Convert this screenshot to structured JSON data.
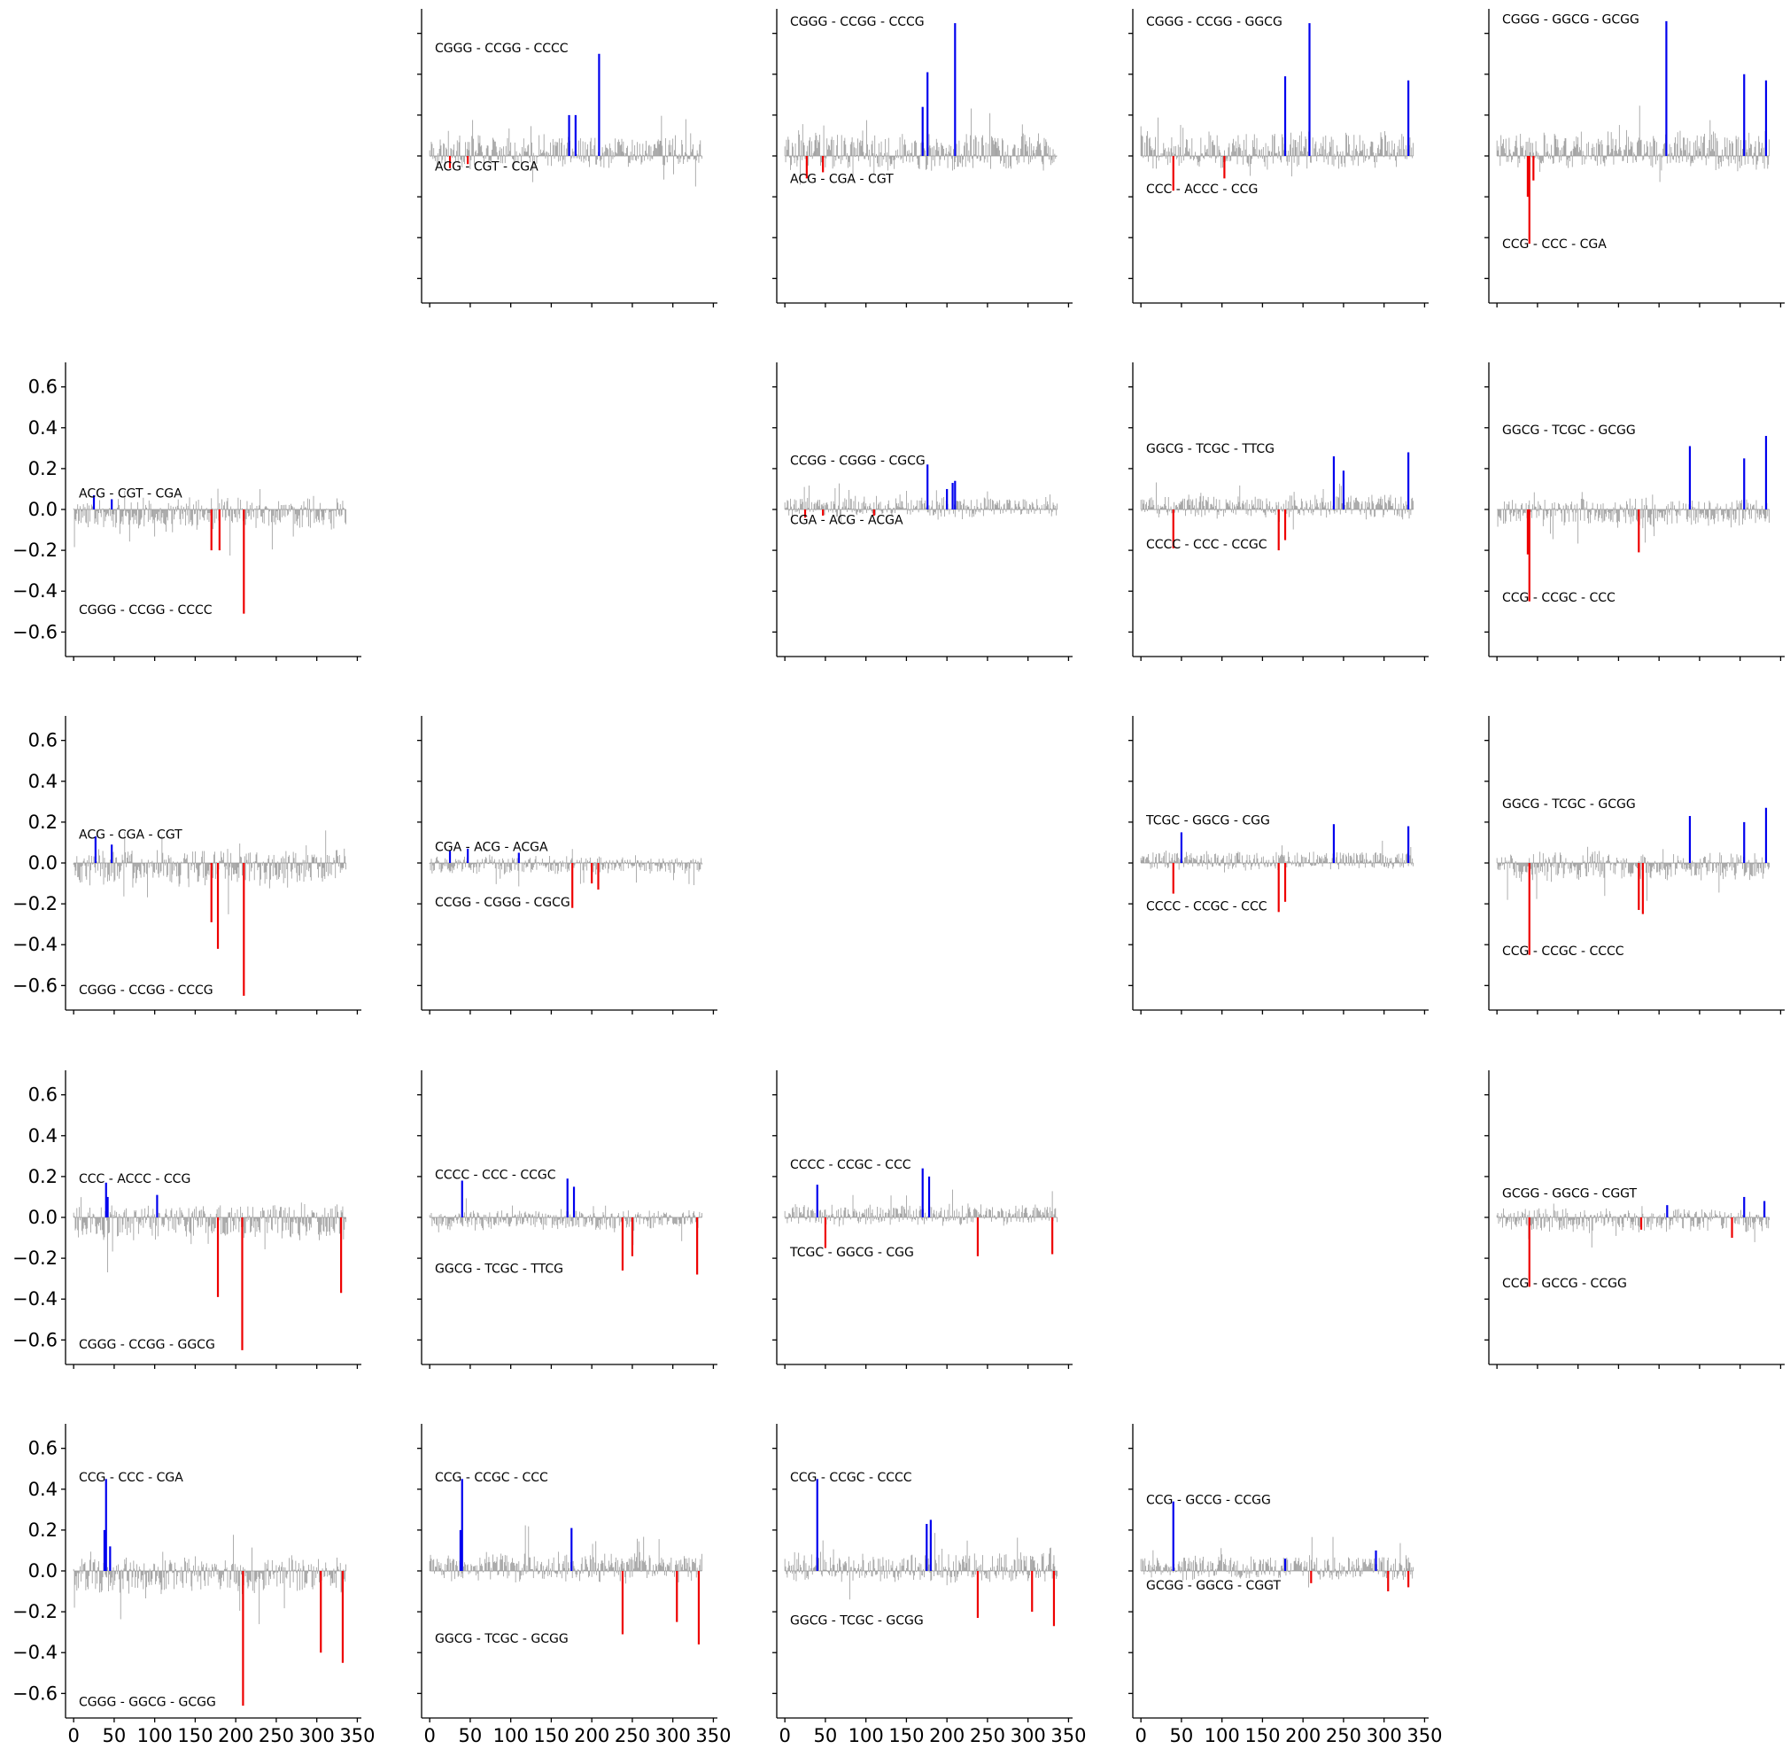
{
  "colors": {
    "positive": "#0000ee",
    "negative": "#ee0000",
    "background": "#999999",
    "axis": "#000000"
  },
  "chart_data": {
    "type": "bar",
    "layout": "5x5 grid of small multiples, diagonal and lower-right corner empty",
    "xlim": [
      -10,
      355
    ],
    "ylim": [
      -0.72,
      0.72
    ],
    "xticks": [
      0,
      50,
      100,
      150,
      200,
      250,
      300,
      350
    ],
    "yticks": [
      -0.6,
      -0.4,
      -0.2,
      0.0,
      0.2,
      0.4,
      0.6
    ],
    "ytick_labels": [
      "−0.6",
      "−0.4",
      "−0.2",
      "0.0",
      "0.2",
      "0.4",
      "0.6"
    ],
    "panels": [
      {
        "row": 0,
        "col": 1,
        "top_label": "CGGG - CCGG - CCCC",
        "bottom_label": "ACG - CGT - CGA",
        "top_label_value": 0.53,
        "bottom_label_value": -0.05,
        "bars": [
          [
            172,
            0.2
          ],
          [
            180,
            0.2
          ],
          [
            209,
            0.5
          ],
          [
            25,
            -0.06
          ],
          [
            47,
            -0.04
          ]
        ]
      },
      {
        "row": 0,
        "col": 2,
        "top_label": "CGGG - CCGG - CCCG",
        "bottom_label": "ACG - CGA - CGT",
        "top_label_value": 0.66,
        "bottom_label_value": -0.11,
        "bars": [
          [
            170,
            0.24
          ],
          [
            176,
            0.41
          ],
          [
            210,
            0.65
          ],
          [
            27,
            -0.11
          ],
          [
            47,
            -0.08
          ]
        ]
      },
      {
        "row": 0,
        "col": 3,
        "top_label": "CGGG - CCGG - GGCG",
        "bottom_label": "CCC - ACCC - CCG",
        "top_label_value": 0.66,
        "bottom_label_value": -0.16,
        "bars": [
          [
            178,
            0.39
          ],
          [
            208,
            0.65
          ],
          [
            330,
            0.37
          ],
          [
            40,
            -0.17
          ],
          [
            103,
            -0.11
          ]
        ]
      },
      {
        "row": 0,
        "col": 4,
        "top_label": "CGGG - GGCG - GCGG",
        "bottom_label": "CCG - CCC - CGA",
        "top_label_value": 0.67,
        "bottom_label_value": -0.43,
        "bars": [
          [
            209,
            0.66
          ],
          [
            305,
            0.4
          ],
          [
            332,
            0.37
          ],
          [
            38,
            -0.2
          ],
          [
            40,
            -0.43
          ],
          [
            45,
            -0.12
          ]
        ]
      },
      {
        "row": 1,
        "col": 0,
        "top_label": "ACG - CGT - CGA",
        "bottom_label": "CGGG - CCGG - CCCC",
        "top_label_value": 0.08,
        "bottom_label_value": -0.49,
        "bars": [
          [
            25,
            0.07
          ],
          [
            47,
            0.05
          ],
          [
            170,
            -0.2
          ],
          [
            180,
            -0.2
          ],
          [
            210,
            -0.51
          ]
        ]
      },
      {
        "row": 1,
        "col": 2,
        "top_label": "CCGG - CGGG - CGCG",
        "bottom_label": "CGA - ACG - ACGA",
        "top_label_value": 0.24,
        "bottom_label_value": -0.05,
        "bars": [
          [
            176,
            0.22
          ],
          [
            200,
            0.1
          ],
          [
            207,
            0.13
          ],
          [
            210,
            0.14
          ],
          [
            25,
            -0.04
          ],
          [
            47,
            -0.03
          ],
          [
            110,
            -0.03
          ]
        ]
      },
      {
        "row": 1,
        "col": 3,
        "top_label": "GGCG - TCGC - TTCG",
        "bottom_label": "CCCC - CCC - CCGC",
        "top_label_value": 0.3,
        "bottom_label_value": -0.17,
        "bars": [
          [
            238,
            0.26
          ],
          [
            250,
            0.19
          ],
          [
            330,
            0.28
          ],
          [
            40,
            -0.19
          ],
          [
            170,
            -0.2
          ],
          [
            178,
            -0.15
          ]
        ]
      },
      {
        "row": 1,
        "col": 4,
        "top_label": "GGCG - TCGC - GCGG",
        "bottom_label": "CCG - CCGC - CCC",
        "top_label_value": 0.39,
        "bottom_label_value": -0.43,
        "bars": [
          [
            238,
            0.31
          ],
          [
            305,
            0.25
          ],
          [
            332,
            0.36
          ],
          [
            38,
            -0.22
          ],
          [
            40,
            -0.45
          ],
          [
            175,
            -0.21
          ]
        ]
      },
      {
        "row": 2,
        "col": 0,
        "top_label": "ACG - CGA - CGT",
        "bottom_label": "CGGG - CCGG - CCCG",
        "top_label_value": 0.14,
        "bottom_label_value": -0.62,
        "bars": [
          [
            27,
            0.13
          ],
          [
            47,
            0.09
          ],
          [
            170,
            -0.29
          ],
          [
            178,
            -0.42
          ],
          [
            210,
            -0.65
          ]
        ]
      },
      {
        "row": 2,
        "col": 1,
        "top_label": "CGA - ACG - ACGA",
        "bottom_label": "CCGG - CGGG - CGCG",
        "top_label_value": 0.08,
        "bottom_label_value": -0.19,
        "bars": [
          [
            25,
            0.06
          ],
          [
            47,
            0.07
          ],
          [
            110,
            0.05
          ],
          [
            176,
            -0.22
          ],
          [
            200,
            -0.1
          ],
          [
            208,
            -0.13
          ]
        ]
      },
      {
        "row": 2,
        "col": 3,
        "top_label": "TCGC - GGCG - CGG",
        "bottom_label": "CCCC - CCGC - CCC",
        "top_label_value": 0.21,
        "bottom_label_value": -0.21,
        "bars": [
          [
            50,
            0.15
          ],
          [
            238,
            0.19
          ],
          [
            330,
            0.18
          ],
          [
            40,
            -0.15
          ],
          [
            170,
            -0.24
          ],
          [
            178,
            -0.19
          ]
        ]
      },
      {
        "row": 2,
        "col": 4,
        "top_label": "GGCG - TCGC - GCGG",
        "bottom_label": "CCG - CCGC - CCCC",
        "top_label_value": 0.29,
        "bottom_label_value": -0.43,
        "bars": [
          [
            238,
            0.23
          ],
          [
            305,
            0.2
          ],
          [
            332,
            0.27
          ],
          [
            40,
            -0.45
          ],
          [
            175,
            -0.23
          ],
          [
            180,
            -0.25
          ]
        ]
      },
      {
        "row": 3,
        "col": 0,
        "top_label": "CCC - ACCC - CCG",
        "bottom_label": "CGGG - CCGG - GGCG",
        "top_label_value": 0.19,
        "bottom_label_value": -0.62,
        "bars": [
          [
            40,
            0.17
          ],
          [
            42,
            0.1
          ],
          [
            103,
            0.11
          ],
          [
            178,
            -0.39
          ],
          [
            208,
            -0.65
          ],
          [
            330,
            -0.37
          ]
        ]
      },
      {
        "row": 3,
        "col": 1,
        "top_label": "CCCC - CCC - CCGC",
        "bottom_label": "GGCG - TCGC - TTCG",
        "top_label_value": 0.21,
        "bottom_label_value": -0.25,
        "bars": [
          [
            40,
            0.18
          ],
          [
            170,
            0.19
          ],
          [
            178,
            0.15
          ],
          [
            238,
            -0.26
          ],
          [
            250,
            -0.19
          ],
          [
            330,
            -0.28
          ]
        ]
      },
      {
        "row": 3,
        "col": 2,
        "top_label": "CCCC - CCGC - CCC",
        "bottom_label": "TCGC - GGCG - CGG",
        "top_label_value": 0.26,
        "bottom_label_value": -0.17,
        "bars": [
          [
            40,
            0.16
          ],
          [
            170,
            0.24
          ],
          [
            178,
            0.2
          ],
          [
            50,
            -0.15
          ],
          [
            238,
            -0.19
          ],
          [
            330,
            -0.18
          ]
        ]
      },
      {
        "row": 3,
        "col": 4,
        "top_label": "GCGG - GGCG - CGGT",
        "bottom_label": "CCG - GCCG - CCGG",
        "top_label_value": 0.12,
        "bottom_label_value": -0.32,
        "bars": [
          [
            210,
            0.06
          ],
          [
            305,
            0.1
          ],
          [
            330,
            0.08
          ],
          [
            40,
            -0.34
          ],
          [
            178,
            -0.06
          ],
          [
            290,
            -0.1
          ]
        ]
      },
      {
        "row": 4,
        "col": 0,
        "top_label": "CCG - CCC - CGA",
        "bottom_label": "CGGG - GGCG - GCGG",
        "top_label_value": 0.46,
        "bottom_label_value": -0.64,
        "bars": [
          [
            38,
            0.2
          ],
          [
            40,
            0.45
          ],
          [
            45,
            0.12
          ],
          [
            209,
            -0.66
          ],
          [
            305,
            -0.4
          ],
          [
            332,
            -0.45
          ]
        ]
      },
      {
        "row": 4,
        "col": 1,
        "top_label": "CCG - CCGC - CCC",
        "bottom_label": "GGCG - TCGC - GCGG",
        "top_label_value": 0.46,
        "bottom_label_value": -0.33,
        "bars": [
          [
            38,
            0.2
          ],
          [
            40,
            0.45
          ],
          [
            175,
            0.21
          ],
          [
            238,
            -0.31
          ],
          [
            305,
            -0.25
          ],
          [
            332,
            -0.36
          ]
        ]
      },
      {
        "row": 4,
        "col": 2,
        "top_label": "CCG - CCGC - CCCC",
        "bottom_label": "GGCG - TCGC - GCGG",
        "top_label_value": 0.46,
        "bottom_label_value": -0.24,
        "bars": [
          [
            40,
            0.45
          ],
          [
            175,
            0.23
          ],
          [
            180,
            0.25
          ],
          [
            238,
            -0.23
          ],
          [
            305,
            -0.2
          ],
          [
            332,
            -0.27
          ]
        ]
      },
      {
        "row": 4,
        "col": 3,
        "top_label": "CCG - GCCG - CCGG",
        "bottom_label": "GCGG - GGCG - CGGT",
        "top_label_value": 0.35,
        "bottom_label_value": -0.07,
        "bars": [
          [
            40,
            0.34
          ],
          [
            178,
            0.06
          ],
          [
            290,
            0.1
          ],
          [
            210,
            -0.06
          ],
          [
            305,
            -0.1
          ],
          [
            330,
            -0.08
          ]
        ]
      }
    ]
  }
}
